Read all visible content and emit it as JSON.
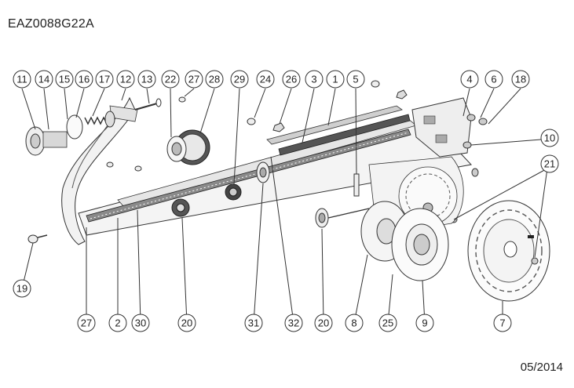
{
  "document": {
    "code": "EAZ0088G22A",
    "date": "05/2014"
  },
  "callouts": [
    {
      "id": "c11a",
      "label": "11"
    },
    {
      "id": "c14",
      "label": "14"
    },
    {
      "id": "c15",
      "label": "15"
    },
    {
      "id": "c16",
      "label": "16"
    },
    {
      "id": "c17",
      "label": "17"
    },
    {
      "id": "c12",
      "label": "12"
    },
    {
      "id": "c13",
      "label": "13"
    },
    {
      "id": "c22",
      "label": "22"
    },
    {
      "id": "c27a",
      "label": "27"
    },
    {
      "id": "c28",
      "label": "28"
    },
    {
      "id": "c29",
      "label": "29"
    },
    {
      "id": "c24",
      "label": "24"
    },
    {
      "id": "c26",
      "label": "26"
    },
    {
      "id": "c3",
      "label": "3"
    },
    {
      "id": "c1",
      "label": "1"
    },
    {
      "id": "c5",
      "label": "5"
    },
    {
      "id": "c4",
      "label": "4"
    },
    {
      "id": "c6",
      "label": "6"
    },
    {
      "id": "c18",
      "label": "18"
    },
    {
      "id": "c10",
      "label": "10"
    },
    {
      "id": "c21",
      "label": "21"
    },
    {
      "id": "c19",
      "label": "19"
    },
    {
      "id": "c27b",
      "label": "27"
    },
    {
      "id": "c2",
      "label": "2"
    },
    {
      "id": "c30",
      "label": "30"
    },
    {
      "id": "c20a",
      "label": "20"
    },
    {
      "id": "c31",
      "label": "31"
    },
    {
      "id": "c32",
      "label": "32"
    },
    {
      "id": "c20b",
      "label": "20"
    },
    {
      "id": "c8",
      "label": "8"
    },
    {
      "id": "c25",
      "label": "25"
    },
    {
      "id": "c9",
      "label": "9"
    },
    {
      "id": "c7",
      "label": "7"
    }
  ]
}
